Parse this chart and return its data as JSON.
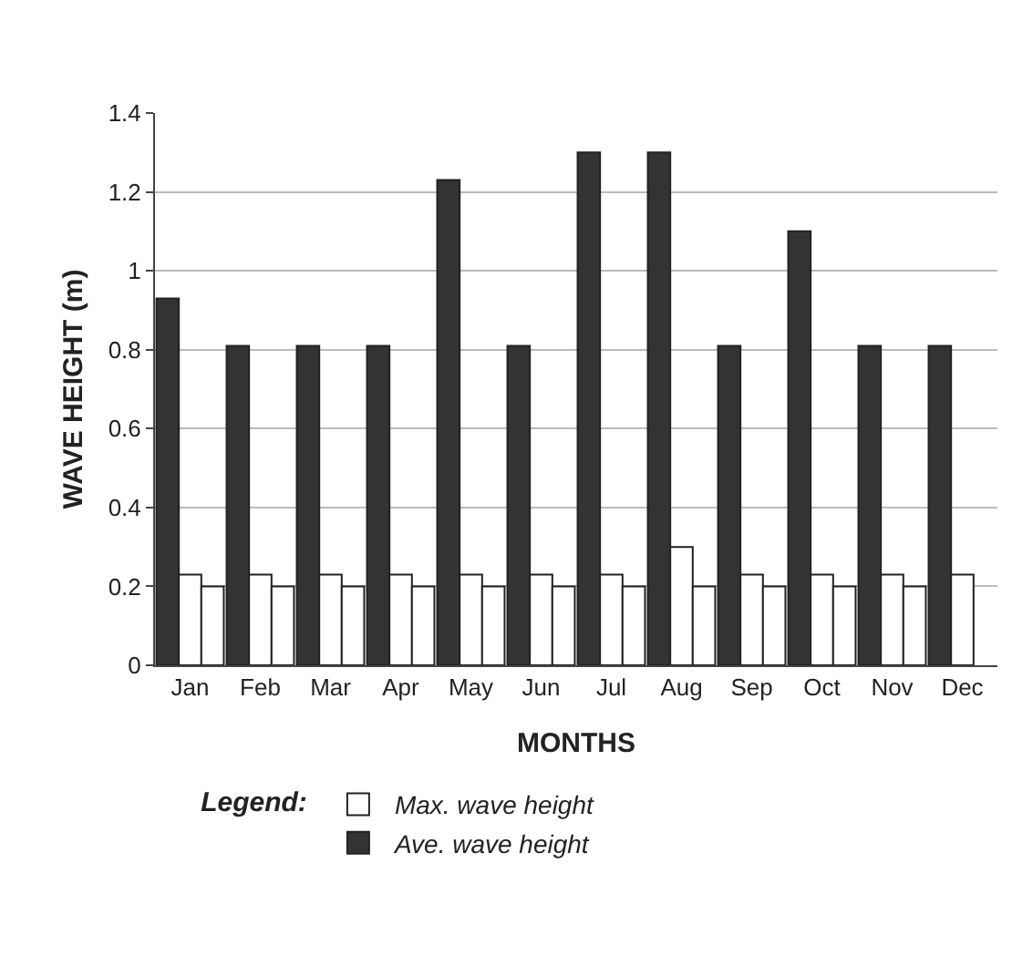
{
  "chart_data": {
    "type": "bar",
    "categories": [
      "Jan",
      "Feb",
      "Mar",
      "Apr",
      "May",
      "Jun",
      "Jul",
      "Aug",
      "Sep",
      "Oct",
      "Nov",
      "Dec"
    ],
    "series": [
      {
        "name": "Ave. wave height",
        "color": "#333333",
        "values": [
          0.93,
          0.81,
          0.81,
          0.81,
          1.23,
          0.81,
          1.3,
          1.3,
          0.81,
          1.1,
          0.81,
          0.81
        ]
      },
      {
        "name": "Max. wave height",
        "color": "#ffffff",
        "values": [
          0.23,
          0.23,
          0.23,
          0.23,
          0.23,
          0.23,
          0.23,
          0.3,
          0.23,
          0.23,
          0.23,
          0.23
        ]
      },
      {
        "color": "#ffffff",
        "values": [
          0.2,
          0.2,
          0.2,
          0.2,
          0.2,
          0.2,
          0.2,
          0.2,
          0.2,
          0.2,
          0.2,
          null
        ]
      }
    ],
    "ylabel": "WAVE HEIGHT (m)",
    "xlabel": "MONTHS",
    "legend_title": "Legend:",
    "ylim": [
      0,
      1.4
    ],
    "yticks": [
      0,
      0.2,
      0.4,
      0.6,
      0.8,
      1,
      1.2,
      1.4
    ],
    "grid": "y",
    "legend": "bottom"
  }
}
